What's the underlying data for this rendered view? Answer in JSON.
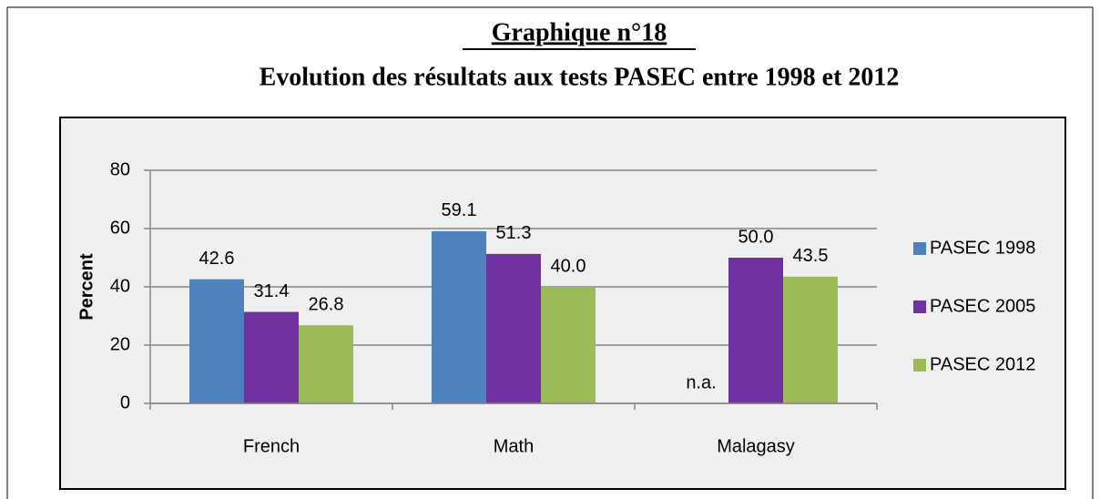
{
  "chart_data": {
    "type": "bar",
    "title": "Graphique n°18",
    "subtitle": "Evolution des résultats aux tests PASEC entre 1998 et 2012",
    "y_label": "Percent",
    "categories": [
      "French",
      "Math",
      "Malagasy"
    ],
    "series": [
      {
        "name": "PASEC 1998",
        "color": "#4f81bd",
        "values": [
          42.6,
          59.1,
          null
        ],
        "value_labels": [
          "42.6",
          "59.1",
          "n.a."
        ]
      },
      {
        "name": "PASEC 2005",
        "color": "#7030a0",
        "values": [
          31.4,
          51.3,
          50.0
        ],
        "value_labels": [
          "31.4",
          "51.3",
          "50.0"
        ]
      },
      {
        "name": "PASEC 2012",
        "color": "#9bbb59",
        "values": [
          26.8,
          40.0,
          43.5
        ],
        "value_labels": [
          "26.8",
          "40.0",
          "43.5"
        ]
      }
    ],
    "ylim": [
      0,
      80
    ],
    "yticks": [
      0,
      20,
      40,
      60,
      80
    ],
    "grid": true,
    "legend": "right"
  }
}
